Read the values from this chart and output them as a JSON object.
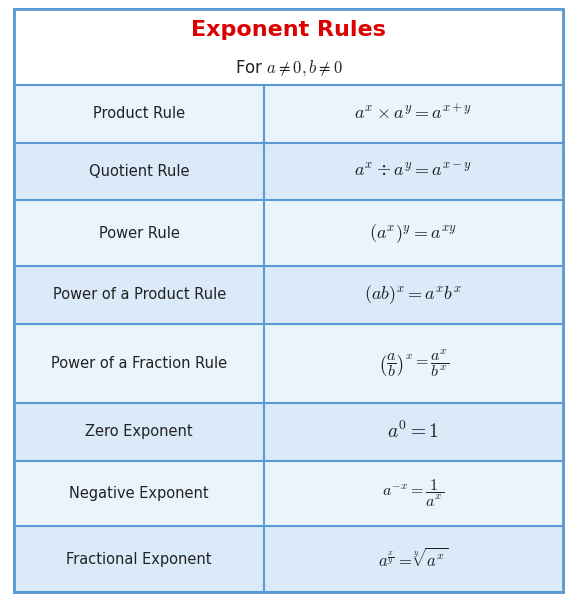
{
  "title": "Exponent Rules",
  "subtitle": "For $a \\neq 0, b \\neq 0$",
  "title_color": "#dd0000",
  "header_bg": "#ffffff",
  "row_bg_odd": "#daeaf8",
  "row_bg_even": "#eaf4fc",
  "border_color": "#5b9bd5",
  "text_color": "#222222",
  "rows": [
    [
      "Product Rule",
      "$a^{x} \\times a^{y} = a^{x+y}$"
    ],
    [
      "Quotient Rule",
      "$a^{x} \\div a^{y} = a^{x-y}$"
    ],
    [
      "Power Rule",
      "$(a^{x})^{y} = a^{xy}$"
    ],
    [
      "Power of a Product Rule",
      "$(ab)^{x} = a^{x}b^{x}$"
    ],
    [
      "Power of a Fraction Rule",
      "$\\left(\\dfrac{a}{b}\\right)^{x} = \\dfrac{a^{x}}{b^{x}}$"
    ],
    [
      "Zero Exponent",
      "$a^{0} = 1$"
    ],
    [
      "Negative Exponent",
      "$a^{-x} = \\dfrac{1}{a^{x}}$"
    ],
    [
      "Fractional Exponent",
      "$a^{\\frac{x}{y}} = \\sqrt[y]{a^{x}}$"
    ]
  ],
  "col_split": 0.455,
  "figsize": [
    5.77,
    6.01
  ],
  "dpi": 100
}
